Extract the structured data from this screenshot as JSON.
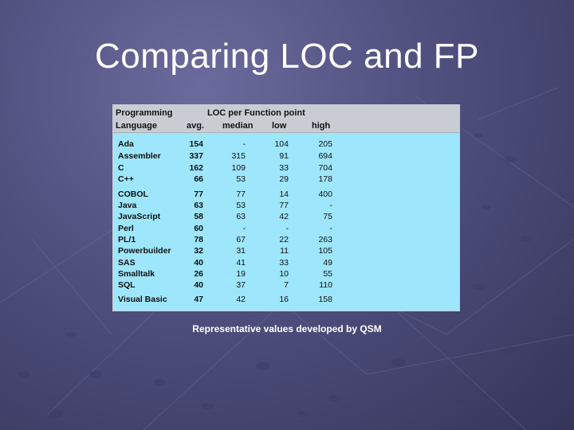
{
  "slide": {
    "title": "Comparing LOC and FP",
    "caption": "Representative values developed by QSM"
  },
  "table": {
    "header_row1": {
      "col1": "Programming",
      "group": "LOC per Function point"
    },
    "header_row2": [
      "Language",
      "avg.",
      "median",
      "low",
      "high"
    ],
    "rows": [
      {
        "language": "Ada",
        "avg": "154",
        "median": "-",
        "low": "104",
        "high": "205"
      },
      {
        "language": "Assembler",
        "avg": "337",
        "median": "315",
        "low": "91",
        "high": "694"
      },
      {
        "language": "C",
        "avg": "162",
        "median": "109",
        "low": "33",
        "high": "704"
      },
      {
        "language": "C++",
        "avg": "66",
        "median": "53",
        "low": "29",
        "high": "178"
      },
      {
        "language": "COBOL",
        "avg": "77",
        "median": "77",
        "low": "14",
        "high": "400"
      },
      {
        "language": "Java",
        "avg": "63",
        "median": "53",
        "low": "77",
        "high": "-"
      },
      {
        "language": "JavaScript",
        "avg": "58",
        "median": "63",
        "low": "42",
        "high": "75"
      },
      {
        "language": "Perl",
        "avg": "60",
        "median": "-",
        "low": "-",
        "high": "-"
      },
      {
        "language": "PL/1",
        "avg": "78",
        "median": "67",
        "low": "22",
        "high": "263"
      },
      {
        "language": "Powerbuilder",
        "avg": "32",
        "median": "31",
        "low": "11",
        "high": "105"
      },
      {
        "language": "SAS",
        "avg": "40",
        "median": "41",
        "low": "33",
        "high": "49"
      },
      {
        "language": "Smalltalk",
        "avg": "26",
        "median": "19",
        "low": "10",
        "high": "55"
      },
      {
        "language": "SQL",
        "avg": "40",
        "median": "37",
        "low": "7",
        "high": "110"
      },
      {
        "language": "Visual Basic",
        "avg": "47",
        "median": "42",
        "low": "16",
        "high": "158"
      }
    ]
  },
  "colors": {
    "table_body": "#9ee6fb",
    "table_header": "#c9cdd3",
    "background": "#4f4f7e"
  }
}
